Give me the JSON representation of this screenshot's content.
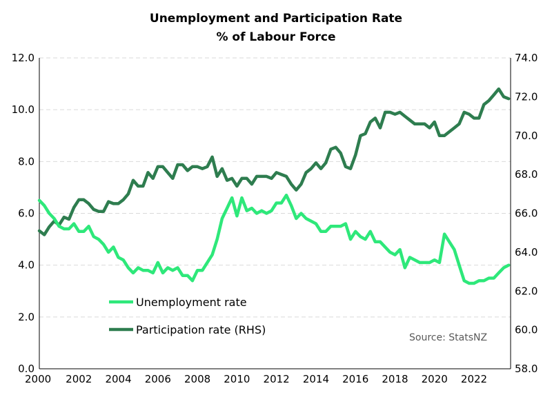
{
  "chart_data": {
    "type": "line",
    "title": "Unemployment and Participation Rate",
    "subtitle": "% of Labour Force",
    "source": "Source: StatsNZ",
    "xlim": [
      2000,
      2023.85
    ],
    "x_ticks": [
      "2000",
      "2002",
      "2004",
      "2006",
      "2008",
      "2010",
      "2012",
      "2014",
      "2016",
      "2018",
      "2020",
      "2022"
    ],
    "y_left": {
      "lim": [
        0,
        12
      ],
      "ticks": [
        "0.0",
        "2.0",
        "4.0",
        "6.0",
        "8.0",
        "10.0",
        "12.0"
      ]
    },
    "y_right": {
      "lim": [
        58,
        74
      ],
      "ticks": [
        "58.0",
        "60.0",
        "62.0",
        "64.0",
        "66.0",
        "68.0",
        "70.0",
        "72.0",
        "74.0"
      ]
    },
    "grid": true,
    "legend_position": "bottom-left",
    "series": [
      {
        "name": "Unemployment rate",
        "axis": "left",
        "color": "#2ee87a",
        "x": [
          2000,
          2000.25,
          2000.5,
          2000.75,
          2001,
          2001.25,
          2001.5,
          2001.75,
          2002,
          2002.25,
          2002.5,
          2002.75,
          2003,
          2003.25,
          2003.5,
          2003.75,
          2004,
          2004.25,
          2004.5,
          2004.75,
          2005,
          2005.25,
          2005.5,
          2005.75,
          2006,
          2006.25,
          2006.5,
          2006.75,
          2007,
          2007.25,
          2007.5,
          2007.75,
          2008,
          2008.25,
          2008.5,
          2008.75,
          2009,
          2009.25,
          2009.5,
          2009.75,
          2010,
          2010.25,
          2010.5,
          2010.75,
          2011,
          2011.25,
          2011.5,
          2011.75,
          2012,
          2012.25,
          2012.5,
          2012.75,
          2013,
          2013.25,
          2013.5,
          2013.75,
          2014,
          2014.25,
          2014.5,
          2014.75,
          2015,
          2015.25,
          2015.5,
          2015.75,
          2016,
          2016.25,
          2016.5,
          2016.75,
          2017,
          2017.25,
          2017.5,
          2017.75,
          2018,
          2018.25,
          2018.5,
          2018.75,
          2019,
          2019.25,
          2019.5,
          2019.75,
          2020,
          2020.25,
          2020.5,
          2020.75,
          2021,
          2021.25,
          2021.5,
          2021.75,
          2022,
          2022.25,
          2022.5,
          2022.75,
          2023,
          2023.25,
          2023.5,
          2023.75
        ],
        "values": [
          6.5,
          6.3,
          6.0,
          5.8,
          5.5,
          5.4,
          5.4,
          5.6,
          5.3,
          5.3,
          5.5,
          5.1,
          5.0,
          4.8,
          4.5,
          4.7,
          4.3,
          4.2,
          3.9,
          3.7,
          3.9,
          3.8,
          3.8,
          3.7,
          4.1,
          3.7,
          3.9,
          3.8,
          3.9,
          3.6,
          3.6,
          3.4,
          3.8,
          3.8,
          4.1,
          4.4,
          5.0,
          5.8,
          6.2,
          6.6,
          5.9,
          6.6,
          6.1,
          6.2,
          6.0,
          6.1,
          6.0,
          6.1,
          6.4,
          6.4,
          6.7,
          6.3,
          5.8,
          6.0,
          5.8,
          5.7,
          5.6,
          5.3,
          5.3,
          5.5,
          5.5,
          5.5,
          5.6,
          5.0,
          5.3,
          5.1,
          5.0,
          5.3,
          4.9,
          4.9,
          4.7,
          4.5,
          4.4,
          4.6,
          3.9,
          4.3,
          4.2,
          4.1,
          4.1,
          4.1,
          4.2,
          4.1,
          5.2,
          4.9,
          4.6,
          4.0,
          3.4,
          3.3,
          3.3,
          3.4,
          3.4,
          3.5,
          3.5,
          3.7,
          3.9,
          4.0
        ]
      },
      {
        "name": "Participation rate (RHS)",
        "axis": "right",
        "color": "#2e7d4f",
        "x": [
          2000,
          2000.25,
          2000.5,
          2000.75,
          2001,
          2001.25,
          2001.5,
          2001.75,
          2002,
          2002.25,
          2002.5,
          2002.75,
          2003,
          2003.25,
          2003.5,
          2003.75,
          2004,
          2004.25,
          2004.5,
          2004.75,
          2005,
          2005.25,
          2005.5,
          2005.75,
          2006,
          2006.25,
          2006.5,
          2006.75,
          2007,
          2007.25,
          2007.5,
          2007.75,
          2008,
          2008.25,
          2008.5,
          2008.75,
          2009,
          2009.25,
          2009.5,
          2009.75,
          2010,
          2010.25,
          2010.5,
          2010.75,
          2011,
          2011.25,
          2011.5,
          2011.75,
          2012,
          2012.25,
          2012.5,
          2012.75,
          2013,
          2013.25,
          2013.5,
          2013.75,
          2014,
          2014.25,
          2014.5,
          2014.75,
          2015,
          2015.25,
          2015.5,
          2015.75,
          2016,
          2016.25,
          2016.5,
          2016.75,
          2017,
          2017.25,
          2017.5,
          2017.75,
          2018,
          2018.25,
          2018.5,
          2018.75,
          2019,
          2019.25,
          2019.5,
          2019.75,
          2020,
          2020.25,
          2020.5,
          2020.75,
          2021,
          2021.25,
          2021.5,
          2021.75,
          2022,
          2022.25,
          2022.5,
          2022.75,
          2023,
          2023.25,
          2023.5,
          2023.75
        ],
        "values": [
          65.1,
          64.9,
          65.3,
          65.6,
          65.4,
          65.8,
          65.7,
          66.3,
          66.7,
          66.7,
          66.5,
          66.2,
          66.1,
          66.1,
          66.6,
          66.5,
          66.5,
          66.7,
          67.0,
          67.7,
          67.4,
          67.4,
          68.1,
          67.8,
          68.4,
          68.4,
          68.1,
          67.8,
          68.5,
          68.5,
          68.2,
          68.4,
          68.4,
          68.3,
          68.4,
          68.9,
          67.9,
          68.3,
          67.7,
          67.8,
          67.4,
          67.8,
          67.8,
          67.5,
          67.9,
          67.9,
          67.9,
          67.8,
          68.1,
          68.0,
          67.9,
          67.5,
          67.2,
          67.5,
          68.1,
          68.3,
          68.6,
          68.3,
          68.6,
          69.3,
          69.4,
          69.1,
          68.4,
          68.3,
          69.0,
          70.0,
          70.1,
          70.7,
          70.9,
          70.4,
          71.2,
          71.2,
          71.1,
          71.2,
          71.0,
          70.8,
          70.6,
          70.6,
          70.6,
          70.4,
          70.7,
          70.0,
          70.0,
          70.2,
          70.4,
          70.6,
          71.2,
          71.1,
          70.9,
          70.9,
          71.6,
          71.8,
          72.1,
          72.4,
          72.0,
          71.9
        ]
      }
    ]
  }
}
